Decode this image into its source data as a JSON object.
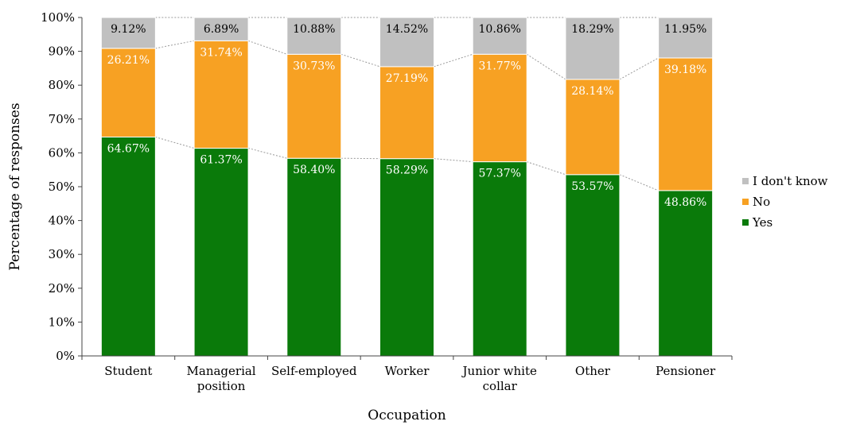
{
  "chart_data": {
    "type": "bar",
    "stacked": true,
    "categories": [
      [
        "Student"
      ],
      [
        "Managerial",
        "position"
      ],
      [
        "Self-employed"
      ],
      [
        "Worker"
      ],
      [
        "Junior white",
        "collar"
      ],
      [
        "Other"
      ],
      [
        "Pensioner"
      ]
    ],
    "series": [
      {
        "name": "Yes",
        "color": "#0a7a0a",
        "label_color": "#ffffff",
        "values": [
          64.67,
          61.37,
          58.4,
          58.29,
          57.37,
          53.57,
          48.86
        ],
        "labels": [
          "64.67%",
          "61.37%",
          "58.40%",
          "58.29%",
          "57.37%",
          "53.57%",
          "48.86%"
        ]
      },
      {
        "name": "No",
        "color": "#f7a123",
        "label_color": "#ffffff",
        "values": [
          26.21,
          31.74,
          30.73,
          27.19,
          31.77,
          28.14,
          39.18
        ],
        "labels": [
          "26.21%",
          "31.74%",
          "30.73%",
          "27.19%",
          "31.77%",
          "28.14%",
          "39.18%"
        ]
      },
      {
        "name": "I don't know",
        "color": "#c0c0c0",
        "label_color": "#000000",
        "values": [
          9.12,
          6.89,
          10.88,
          14.52,
          10.86,
          18.29,
          11.95
        ],
        "labels": [
          "9.12%",
          "6.89%",
          "10.88%",
          "14.52%",
          "10.86%",
          "18.29%",
          "11.95%"
        ]
      }
    ],
    "yticks": [
      "0%",
      "10%",
      "20%",
      "30%",
      "40%",
      "50%",
      "60%",
      "70%",
      "80%",
      "90%",
      "100%"
    ],
    "ylim": [
      0,
      100
    ],
    "xlabel": "Occupation",
    "ylabel": "Percentage of responses",
    "series_lines": true,
    "grid": false,
    "legend_position": "right",
    "legend_order": [
      "I don't know",
      "No",
      "Yes"
    ]
  }
}
